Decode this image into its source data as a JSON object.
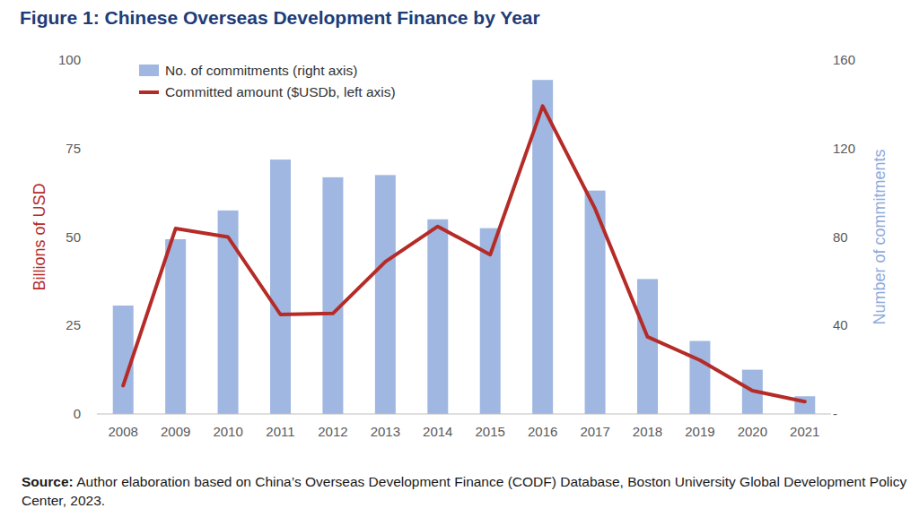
{
  "chart_data": {
    "type": "bar",
    "title": "Figure 1: Chinese Overseas Development Finance by Year",
    "y_label": "Billions of USD",
    "y2_label": "Number of commitments",
    "source_label": "Source:",
    "source_text": "Author elaboration based on China’s Overseas Development Finance (CODF) Database, Boston University Global Development Policy Center, 2023.",
    "categories": [
      "2008",
      "2009",
      "2010",
      "2011",
      "2012",
      "2013",
      "2014",
      "2015",
      "2016",
      "2017",
      "2018",
      "2019",
      "2020",
      "2021"
    ],
    "series": [
      {
        "name": "No. of commitments (right axis)",
        "type": "bar",
        "axis": "y2",
        "color": "#a0b7e1",
        "values": [
          49,
          79,
          92,
          115,
          107,
          108,
          88,
          84,
          151,
          101,
          61,
          33,
          20,
          8
        ]
      },
      {
        "name": "Committed amount ($USDb, left axis)",
        "type": "line",
        "color": "#b52b27",
        "values": [
          8,
          52.4,
          50,
          28.1,
          28.4,
          43,
          53,
          45,
          87,
          58,
          21.8,
          15.2,
          6.6,
          3.5
        ]
      }
    ],
    "ylim": [
      0,
      100
    ],
    "yticks": [
      0,
      25,
      50,
      75,
      100
    ],
    "y2lim": [
      0,
      160
    ],
    "y2ticks": [
      {
        "value": 0,
        "label": "-"
      },
      40,
      80,
      120,
      160
    ],
    "legend": "upper left",
    "grid": false
  }
}
